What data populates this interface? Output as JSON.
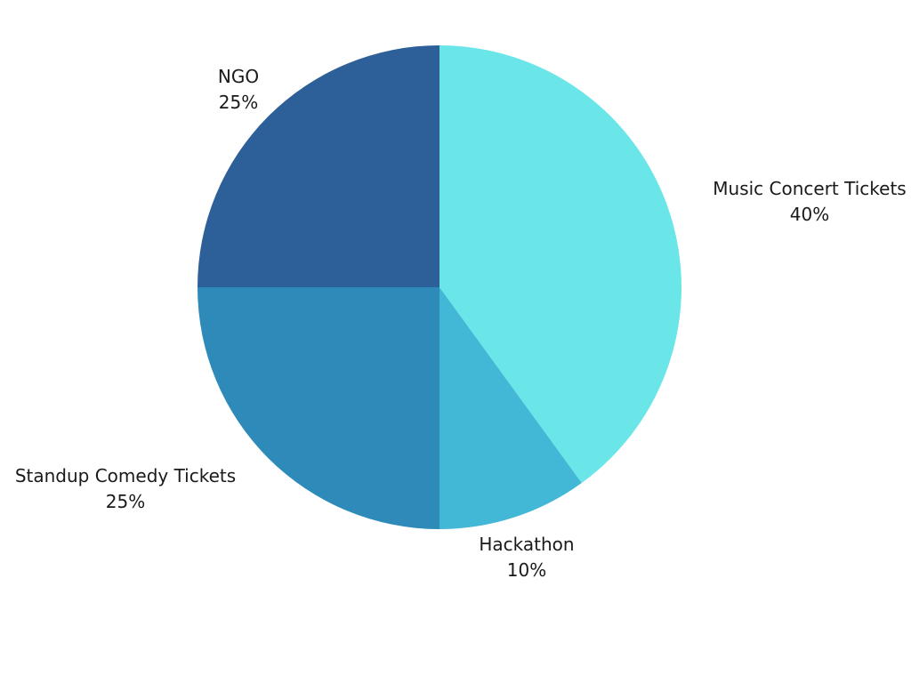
{
  "chart_data": {
    "type": "pie",
    "title": "",
    "categories": [
      "Music Concert Tickets",
      "Hackathon",
      "Standup Comedy Tickets",
      "NGO"
    ],
    "values": [
      40,
      10,
      25,
      25
    ],
    "percent_labels": [
      "40%",
      "10%",
      "25%",
      "25%"
    ],
    "colors": [
      "#6ae5e8",
      "#42b8d6",
      "#2e8bb9",
      "#2d5f98"
    ],
    "start": "12 o'clock",
    "direction": "clockwise",
    "legend": "none"
  }
}
